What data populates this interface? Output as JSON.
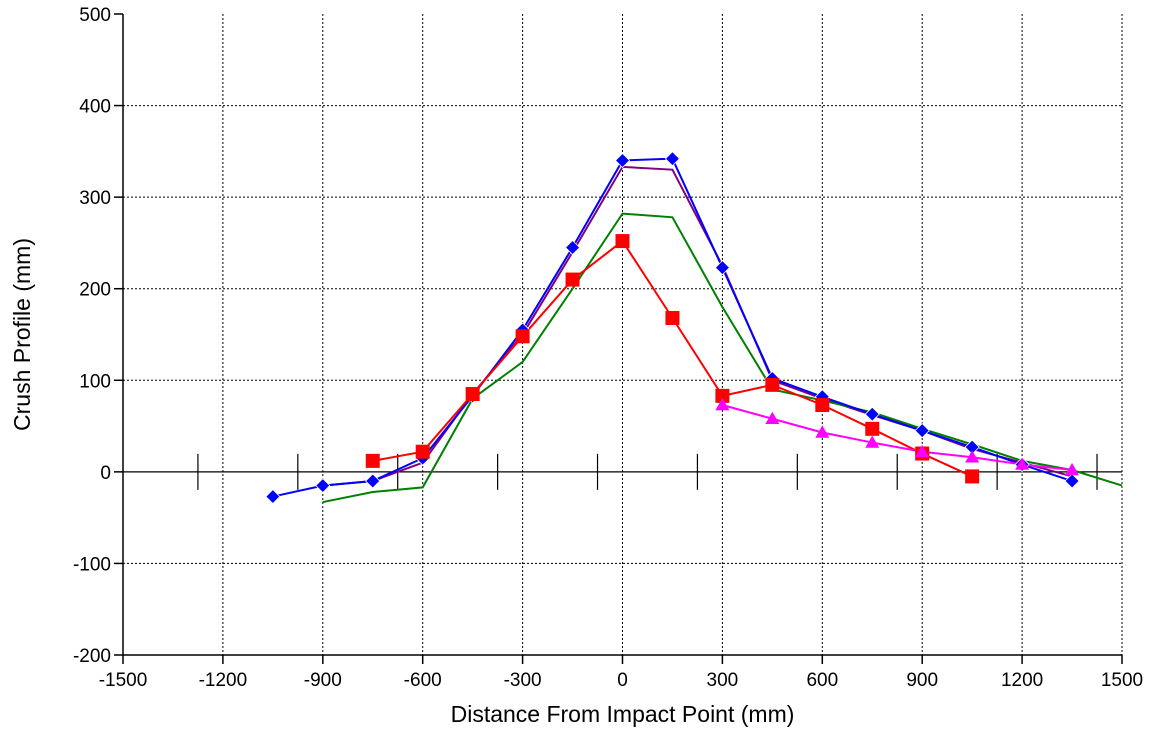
{
  "chart_data": {
    "type": "line",
    "title": "",
    "xlabel": "Distance From Impact Point (mm)",
    "ylabel": "Crush Profile (mm)",
    "xlim": [
      -1500,
      1500
    ],
    "ylim": [
      -200,
      500
    ],
    "xticks": [
      -1500,
      -1200,
      -900,
      -600,
      -300,
      0,
      300,
      600,
      900,
      1200,
      1500
    ],
    "yticks": [
      -200,
      -100,
      0,
      100,
      200,
      300,
      400,
      500
    ],
    "grid": true,
    "legend": "none",
    "zero_line_ticks": [
      -1275,
      -975,
      -675,
      -375,
      -75,
      225,
      525,
      825,
      1125,
      1425
    ],
    "series": [
      {
        "color": "#800080",
        "marker": "none",
        "x": [
          -900,
          -750,
          -600,
          -450,
          -300,
          -150,
          0,
          150,
          300,
          450,
          600,
          750,
          900,
          1050,
          1200,
          1350
        ],
        "y": [
          -15,
          -10,
          10,
          85,
          150,
          240,
          333,
          330,
          225,
          100,
          80,
          62,
          45,
          25,
          10,
          -5
        ]
      },
      {
        "color": "#008000",
        "marker": "none",
        "x": [
          -900,
          -750,
          -600,
          -450,
          -300,
          -150,
          0,
          150,
          300,
          450,
          600,
          750,
          900,
          1050,
          1200,
          1350,
          1500
        ],
        "y": [
          -33,
          -22,
          -17,
          80,
          120,
          200,
          282,
          278,
          180,
          90,
          78,
          65,
          47,
          30,
          12,
          2,
          -15
        ]
      },
      {
        "color": "#0000ff",
        "marker": "diamond",
        "x": [
          -1050,
          -900,
          -750,
          -600,
          -450,
          -300,
          -150,
          0,
          150,
          300,
          450,
          600,
          750,
          900,
          1050,
          1200,
          1350
        ],
        "y": [
          -27,
          -15,
          -10,
          15,
          83,
          155,
          245,
          340,
          342,
          223,
          102,
          82,
          63,
          45,
          27,
          8,
          -10
        ]
      },
      {
        "color": "#ff0000",
        "marker": "square",
        "x": [
          -750,
          -600,
          -450,
          -300,
          -150,
          0,
          150,
          300,
          450,
          600,
          750,
          900,
          1050
        ],
        "y": [
          12,
          22,
          85,
          148,
          210,
          252,
          168,
          83,
          95,
          73,
          47,
          20,
          -5
        ]
      },
      {
        "color": "#ff00ff",
        "marker": "triangle",
        "x": [
          300,
          450,
          600,
          750,
          900,
          1050,
          1200,
          1350
        ],
        "y": [
          73,
          58,
          43,
          32,
          22,
          16,
          8,
          2
        ]
      }
    ]
  }
}
